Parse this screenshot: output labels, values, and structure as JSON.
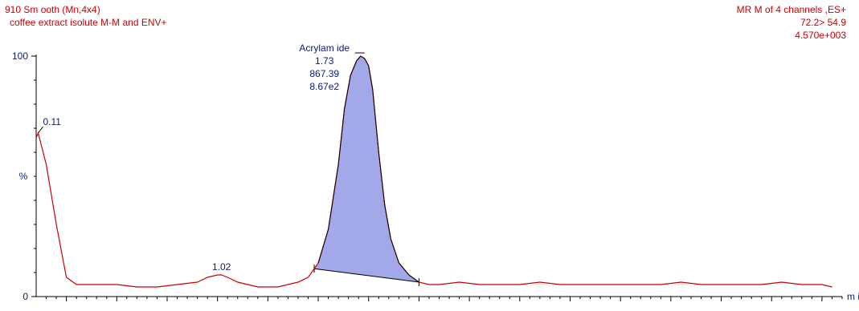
{
  "header": {
    "left": [
      "910 Sm ooth (Mn,4x4)",
      "coffee extract isolute M-M and ENV+"
    ],
    "right": [
      "MR M of 4 channels ,ES+",
      "72.2> 54.9",
      "4.570e+003"
    ]
  },
  "chart_data": {
    "type": "line",
    "xlabel": "m in",
    "ylabel": "%",
    "xlim": [
      0.1,
      4.1
    ],
    "ylim": [
      0,
      100
    ],
    "y_tick_labels": [
      "0",
      "100"
    ],
    "series": [
      {
        "color": "#cc0000",
        "x": [
          0.1,
          0.11,
          0.15,
          0.2,
          0.25,
          0.3,
          0.4,
          0.5,
          0.6,
          0.7,
          0.8,
          0.9,
          0.95,
          1.0,
          1.02,
          1.05,
          1.1,
          1.15,
          1.2,
          1.25,
          1.3,
          1.35,
          1.4,
          1.45,
          1.5,
          1.55,
          1.6,
          1.63,
          1.66,
          1.69,
          1.71,
          1.73,
          1.75,
          1.77,
          1.8,
          1.83,
          1.86,
          1.9,
          1.95,
          2.0,
          2.05,
          2.1,
          2.2,
          2.3,
          2.4,
          2.5,
          2.6,
          2.7,
          2.8,
          2.9,
          3.0,
          3.1,
          3.2,
          3.3,
          3.4,
          3.5,
          3.6,
          3.7,
          3.8,
          3.9,
          4.0,
          4.05
        ],
        "y": [
          66,
          68,
          55,
          30,
          8,
          5,
          5,
          5,
          4,
          4,
          5,
          6,
          8,
          9,
          9,
          8,
          6,
          5,
          4,
          4,
          4,
          5,
          6,
          8,
          14,
          28,
          55,
          78,
          92,
          98,
          100,
          99,
          96,
          86,
          60,
          38,
          24,
          14,
          9,
          6,
          5,
          5,
          6,
          5,
          5,
          5,
          6,
          5,
          5,
          5,
          5,
          5,
          5,
          6,
          5,
          5,
          5,
          5,
          6,
          5,
          5,
          4
        ]
      }
    ],
    "peaks": [
      {
        "rt": 0.11,
        "labels": [
          "0.11"
        ]
      },
      {
        "rt": 1.02,
        "labels": [
          "1.02"
        ]
      },
      {
        "rt": 1.73,
        "labels": [
          "Acrylam ide",
          "1.73",
          "867.39",
          "8.67e2"
        ],
        "integrated": true,
        "fill": "#a3a8e8",
        "start": 1.48,
        "end": 2.0
      }
    ]
  }
}
